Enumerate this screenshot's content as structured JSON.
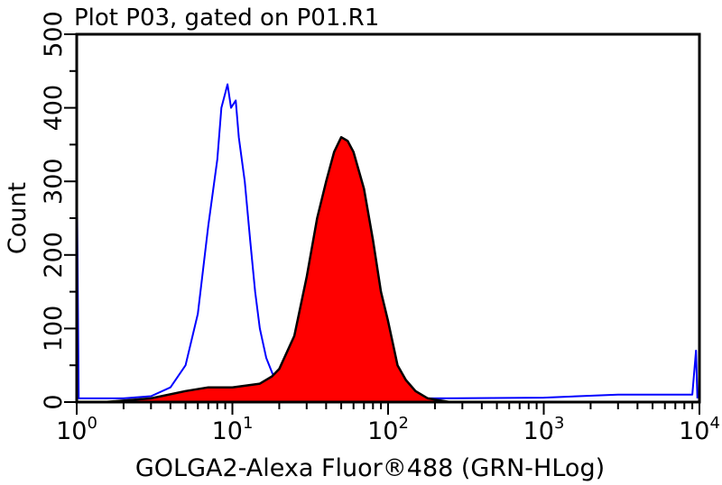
{
  "chart_data": {
    "type": "area",
    "title": "Plot P03, gated on P01.R1",
    "xlabel": "GOLGA2-Alexa Fluor®488 (GRN-HLog)",
    "ylabel": "Count",
    "xscale": "log",
    "xlim": [
      1,
      10000
    ],
    "ylim": [
      0,
      500
    ],
    "x_tick_labels": [
      {
        "base": "10",
        "exp": "0",
        "value": 1
      },
      {
        "base": "10",
        "exp": "1",
        "value": 10
      },
      {
        "base": "10",
        "exp": "2",
        "value": 100
      },
      {
        "base": "10",
        "exp": "3",
        "value": 1000
      },
      {
        "base": "10",
        "exp": "4",
        "value": 10000
      }
    ],
    "y_ticks": [
      "0",
      "100",
      "200",
      "300",
      "400",
      "500"
    ],
    "grid": false,
    "series": [
      {
        "style": "outline",
        "color": "#0000ff",
        "points": [
          [
            1,
            330
          ],
          [
            1.03,
            5
          ],
          [
            2,
            5
          ],
          [
            3,
            8
          ],
          [
            4,
            20
          ],
          [
            5,
            50
          ],
          [
            6,
            120
          ],
          [
            7,
            240
          ],
          [
            8,
            330
          ],
          [
            8.5,
            400
          ],
          [
            9,
            420
          ],
          [
            9.3,
            432
          ],
          [
            9.8,
            400
          ],
          [
            10.5,
            410
          ],
          [
            11,
            360
          ],
          [
            12,
            300
          ],
          [
            13,
            220
          ],
          [
            14,
            150
          ],
          [
            15,
            100
          ],
          [
            16.5,
            60
          ],
          [
            18,
            40
          ],
          [
            20,
            20
          ],
          [
            25,
            10
          ],
          [
            40,
            5
          ],
          [
            100,
            5
          ],
          [
            200,
            5
          ],
          [
            1000,
            6
          ],
          [
            3000,
            10
          ],
          [
            6000,
            10
          ],
          [
            9000,
            10
          ],
          [
            9500,
            70
          ],
          [
            9700,
            5
          ]
        ]
      },
      {
        "style": "filled",
        "color": "#ff0000",
        "outline": "#000000",
        "points": [
          [
            1.5,
            0
          ],
          [
            3,
            5
          ],
          [
            5,
            15
          ],
          [
            7,
            20
          ],
          [
            10,
            20
          ],
          [
            15,
            25
          ],
          [
            18,
            35
          ],
          [
            20,
            45
          ],
          [
            25,
            90
          ],
          [
            30,
            170
          ],
          [
            35,
            250
          ],
          [
            40,
            300
          ],
          [
            45,
            340
          ],
          [
            50,
            360
          ],
          [
            55,
            355
          ],
          [
            60,
            340
          ],
          [
            70,
            290
          ],
          [
            80,
            220
          ],
          [
            90,
            150
          ],
          [
            100,
            110
          ],
          [
            115,
            50
          ],
          [
            130,
            30
          ],
          [
            150,
            15
          ],
          [
            180,
            5
          ],
          [
            250,
            0
          ]
        ]
      }
    ]
  }
}
